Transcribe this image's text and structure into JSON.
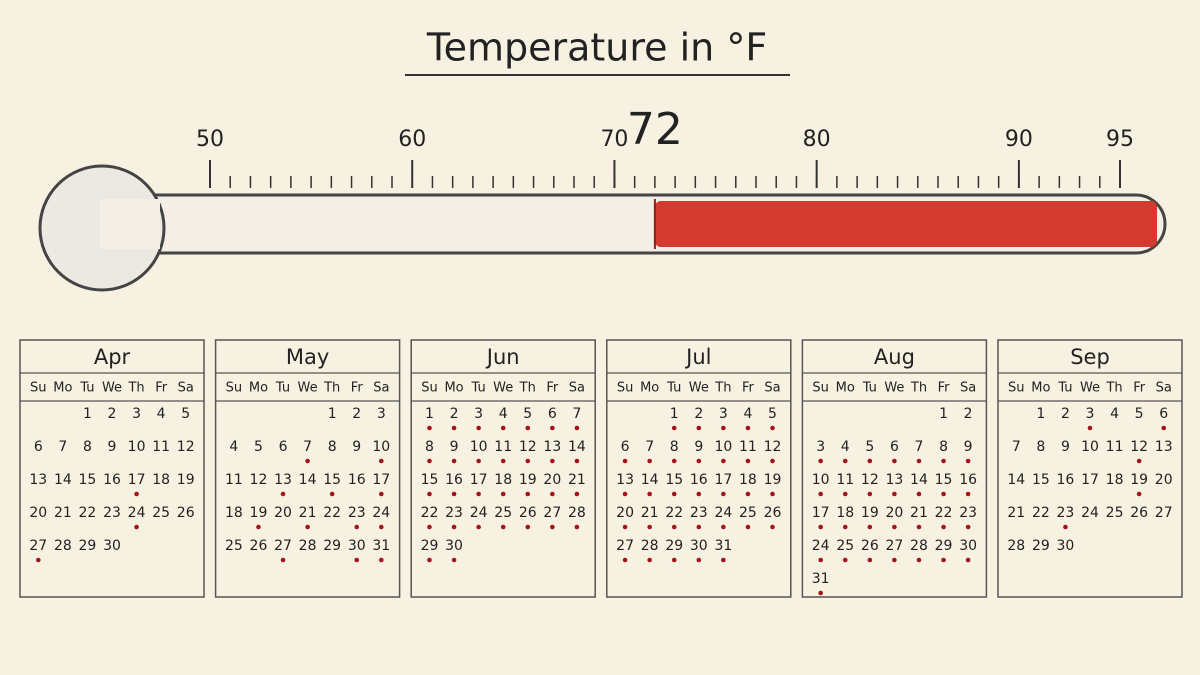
{
  "title": "Temperature in °F",
  "thermometer": {
    "range": [
      50,
      95
    ],
    "ticks": [
      50,
      60,
      70,
      80,
      90,
      95
    ],
    "minor_tick_step": 1,
    "marker": 72
  },
  "weekdays": [
    "Su",
    "Mo",
    "Tu",
    "We",
    "Th",
    "Fr",
    "Sa"
  ],
  "months": [
    {
      "name": "Apr",
      "weeks": [
        [
          null,
          null,
          1,
          2,
          3,
          4,
          5
        ],
        [
          6,
          7,
          8,
          9,
          10,
          11,
          12
        ],
        [
          13,
          14,
          15,
          16,
          17,
          18,
          19
        ],
        [
          20,
          21,
          22,
          23,
          24,
          25,
          26
        ],
        [
          27,
          28,
          29,
          30,
          null,
          null,
          null
        ]
      ],
      "dotted_days": [
        17,
        24,
        27
      ]
    },
    {
      "name": "May",
      "weeks": [
        [
          null,
          null,
          null,
          null,
          1,
          2,
          3
        ],
        [
          4,
          5,
          6,
          7,
          8,
          9,
          10
        ],
        [
          11,
          12,
          13,
          14,
          15,
          16,
          17
        ],
        [
          18,
          19,
          20,
          21,
          22,
          23,
          24
        ],
        [
          25,
          26,
          27,
          28,
          29,
          30,
          31
        ]
      ],
      "dotted_days": [
        7,
        10,
        13,
        15,
        17,
        19,
        21,
        23,
        24,
        27,
        30,
        31
      ]
    },
    {
      "name": "Jun",
      "weeks": [
        [
          1,
          2,
          3,
          4,
          5,
          6,
          7
        ],
        [
          8,
          9,
          10,
          11,
          12,
          13,
          14
        ],
        [
          15,
          16,
          17,
          18,
          19,
          20,
          21
        ],
        [
          22,
          23,
          24,
          25,
          26,
          27,
          28
        ],
        [
          29,
          30,
          null,
          null,
          null,
          null,
          null
        ]
      ],
      "dotted_days": [
        1,
        2,
        3,
        4,
        5,
        6,
        7,
        8,
        9,
        10,
        11,
        12,
        13,
        14,
        15,
        16,
        17,
        18,
        19,
        20,
        21,
        22,
        23,
        24,
        25,
        26,
        27,
        28,
        29,
        30
      ]
    },
    {
      "name": "Jul",
      "weeks": [
        [
          null,
          null,
          1,
          2,
          3,
          4,
          5
        ],
        [
          6,
          7,
          8,
          9,
          10,
          11,
          12
        ],
        [
          13,
          14,
          15,
          16,
          17,
          18,
          19
        ],
        [
          20,
          21,
          22,
          23,
          24,
          25,
          26
        ],
        [
          27,
          28,
          29,
          30,
          31,
          null,
          null
        ]
      ],
      "dotted_days": [
        1,
        2,
        3,
        4,
        5,
        6,
        7,
        8,
        9,
        10,
        11,
        12,
        13,
        14,
        15,
        16,
        17,
        18,
        19,
        20,
        21,
        22,
        23,
        24,
        25,
        26,
        27,
        28,
        29,
        30,
        31
      ]
    },
    {
      "name": "Aug",
      "weeks": [
        [
          null,
          null,
          null,
          null,
          null,
          1,
          2
        ],
        [
          3,
          4,
          5,
          6,
          7,
          8,
          9
        ],
        [
          10,
          11,
          12,
          13,
          14,
          15,
          16
        ],
        [
          17,
          18,
          19,
          20,
          21,
          22,
          23
        ],
        [
          24,
          25,
          26,
          27,
          28,
          29,
          30
        ],
        [
          31,
          null,
          null,
          null,
          null,
          null,
          null
        ]
      ],
      "dotted_days": [
        3,
        4,
        5,
        6,
        7,
        8,
        9,
        10,
        11,
        12,
        13,
        14,
        15,
        16,
        17,
        18,
        19,
        20,
        21,
        22,
        23,
        24,
        25,
        26,
        27,
        28,
        29,
        30,
        31
      ]
    },
    {
      "name": "Sep",
      "weeks": [
        [
          null,
          1,
          2,
          3,
          4,
          5,
          6
        ],
        [
          7,
          8,
          9,
          10,
          11,
          12,
          13
        ],
        [
          14,
          15,
          16,
          17,
          18,
          19,
          20
        ],
        [
          21,
          22,
          23,
          24,
          25,
          26,
          27
        ],
        [
          28,
          29,
          30,
          null,
          null,
          null,
          null
        ]
      ],
      "dotted_days": [
        3,
        6,
        12,
        19,
        23
      ]
    }
  ]
}
